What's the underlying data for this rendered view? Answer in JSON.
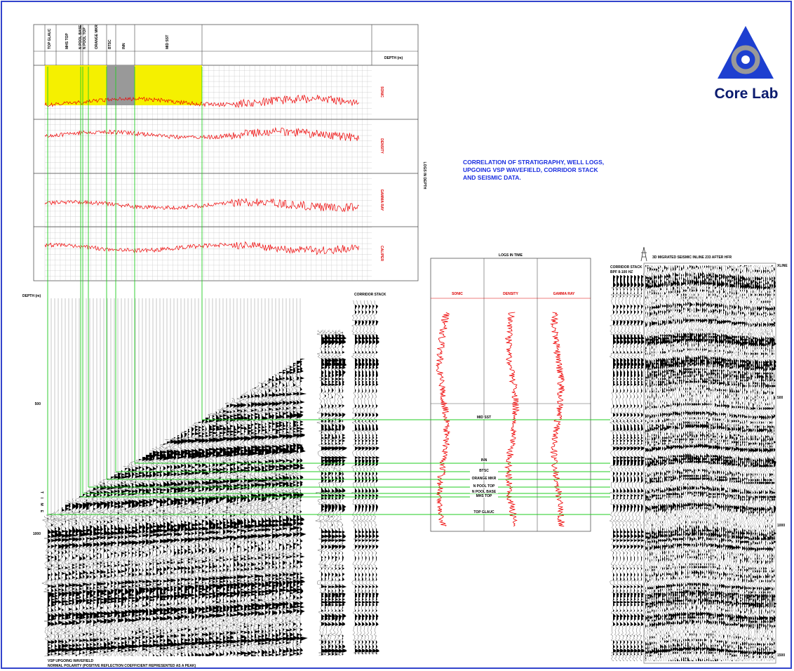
{
  "header": {
    "title_lines": [
      "CORRELATION OF STRATIGRAPHY, WELL LOGS,",
      "UPGOING VSP WAVEFIELD, CORRIDOR STACK",
      "AND SEISMIC DATA."
    ],
    "logo": "Core Lab"
  },
  "logs_in_depth": {
    "title": "LOGS IN DEPTH",
    "depth_label": "DEPTH (m)",
    "tracks": [
      "SONIC",
      "DENSITY",
      "GAMMA RAY",
      "CALIPER"
    ],
    "formations": [
      "TOP GLAUC",
      "MHS TOP",
      "N POOL BASE",
      "N POOL TOP",
      "ORANGE MKR",
      "BTSC",
      "INN",
      "MID SST"
    ]
  },
  "vsp": {
    "depth_label": "DEPTH (m)",
    "time_label": "TIME",
    "time_ticks": [
      500,
      1000
    ],
    "caption": "VSP UPGOING WAVEFIELD",
    "note": "NORMAL POLARITY (POSITIVE REFLECTION COEFFICIENT REPRESENTED AS A PEAK)"
  },
  "corridor_stack": {
    "title": "CORRIDOR STACK"
  },
  "logs_in_time": {
    "title": "LOGS IN TIME",
    "tracks": [
      "SONIC",
      "DENSITY",
      "GAMMA RAY"
    ],
    "horizons": [
      "MID SST",
      "INN",
      "BTSC",
      "ORANGE MKR",
      "N POOL TOP",
      "N POOL BASE",
      "MHS TOP",
      "TOP GLAUC"
    ]
  },
  "seismic": {
    "title": "3D MIGRATED SEISMIC INLINE 233 AFTER HFR",
    "xline": "XLINE",
    "corridor_title": "CORRIDOR STACK",
    "corridor_filter": "BPF 8-100 HZ",
    "time_ticks": [
      500,
      1000,
      1500
    ]
  }
}
